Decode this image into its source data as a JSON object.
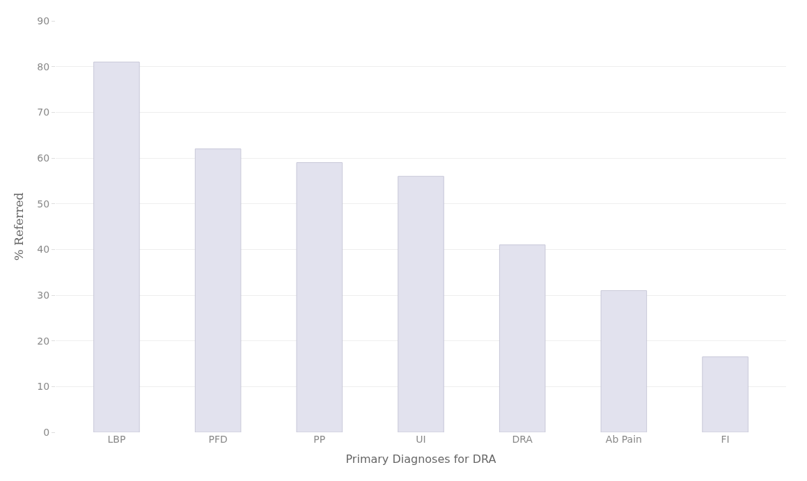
{
  "chart_data": {
    "type": "bar",
    "xlabel": "Primary Diagnoses for DRA",
    "ylabel": "% Referred",
    "categories": [
      "LBP",
      "PFD",
      "PP",
      "UI",
      "DRA",
      "Ab Pain",
      "FI"
    ],
    "values": [
      81,
      62,
      59,
      56,
      41,
      31,
      16.5
    ],
    "color": "#e2e2ee",
    "ylim": [
      0,
      90
    ],
    "yticks": [
      0,
      10,
      20,
      30,
      40,
      50,
      60,
      70,
      80,
      90
    ],
    "grid": "y",
    "legend": false
  }
}
